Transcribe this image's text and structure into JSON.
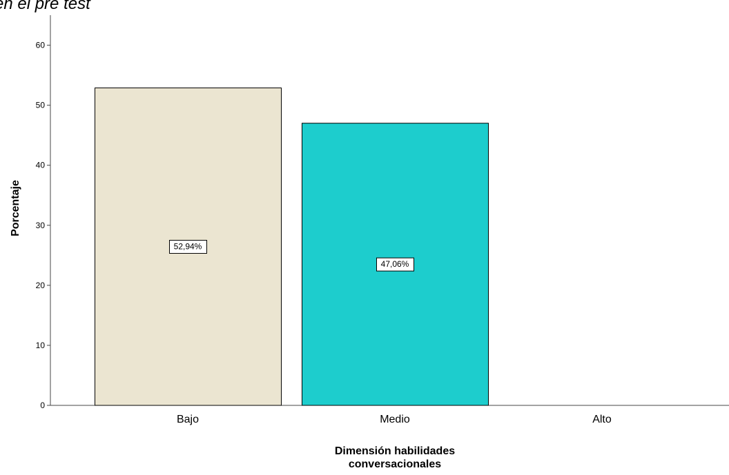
{
  "chart_data": {
    "type": "bar",
    "title_fragment": "en el pre test",
    "categories": [
      "Bajo",
      "Medio",
      "Alto"
    ],
    "values": [
      52.94,
      47.06,
      0
    ],
    "data_labels": [
      "52,94%",
      "47,06%",
      ""
    ],
    "xlabel": "Dimensión habilidades conversacionales",
    "xlabel_lines": [
      "Dimensión habilidades",
      "conversacionales"
    ],
    "ylabel": "Porcentaje",
    "ylim": [
      0,
      65
    ],
    "yticks": [
      0,
      10,
      20,
      30,
      40,
      50,
      60
    ],
    "grid": false,
    "legend": "none",
    "colors": [
      "#ebe5d1",
      "#1dcdcd",
      "#ffffff"
    ],
    "bar_stroke": "#000000"
  }
}
